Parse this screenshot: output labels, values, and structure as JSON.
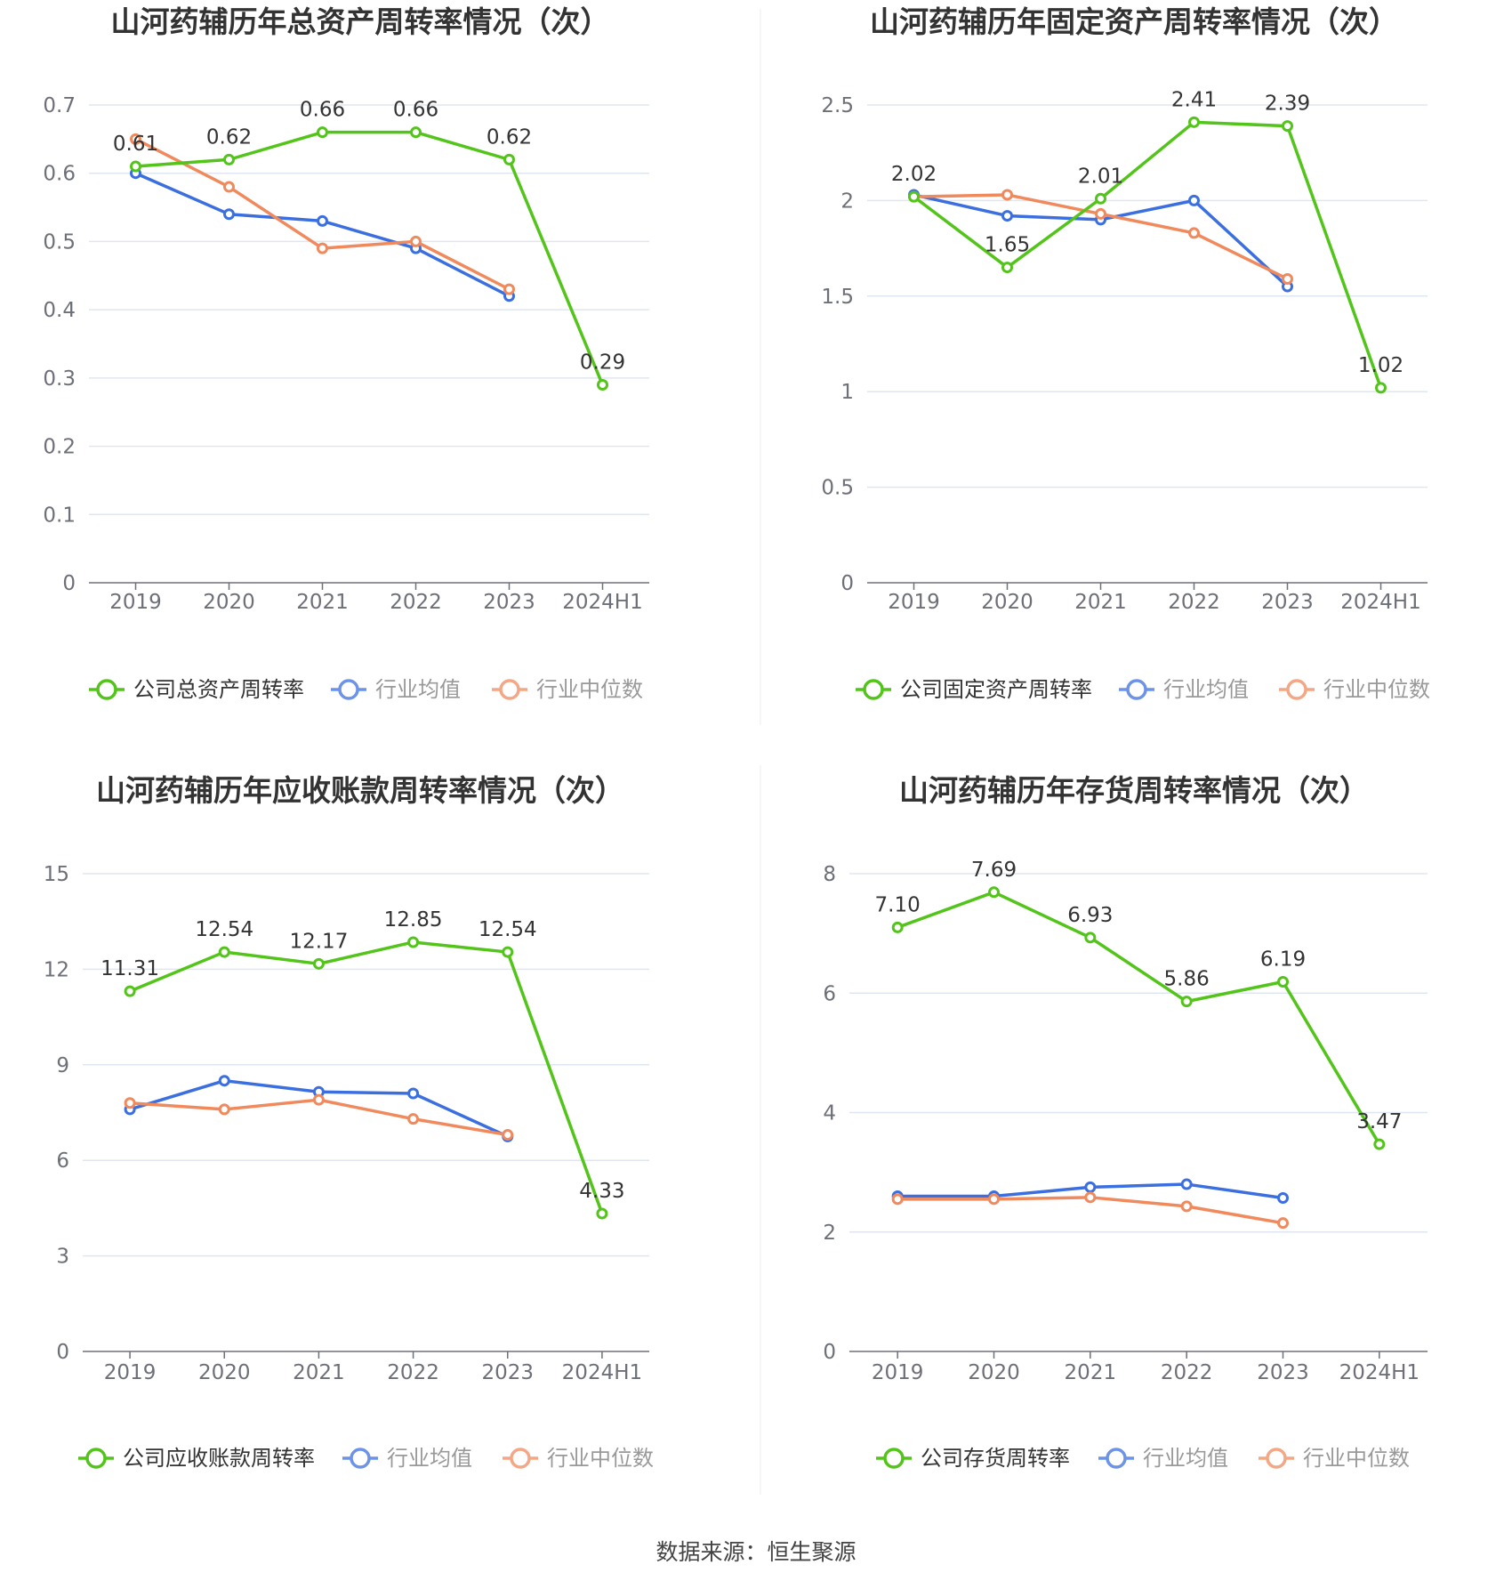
{
  "source_text": "数据来源：恒生聚源",
  "colors": {
    "company": "#52c41a",
    "avg": "#3b6fe0",
    "median": "#f08a5d",
    "grid": "#e0e6f1",
    "axis": "#6e7079",
    "text": "#333333"
  },
  "chart_data": [
    {
      "type": "line",
      "title": "山河药辅历年总资产周转率情况（次）",
      "categories": [
        "2019",
        "2020",
        "2021",
        "2022",
        "2023",
        "2024H1"
      ],
      "ylim": [
        0,
        0.7
      ],
      "yticks": [
        "0",
        "0.1",
        "0.2",
        "0.3",
        "0.4",
        "0.5",
        "0.6",
        "0.7"
      ],
      "series": [
        {
          "name": "公司总资产周转率",
          "role": "company",
          "values": [
            0.61,
            0.62,
            0.66,
            0.66,
            0.62,
            0.29
          ],
          "labels": [
            "0.61",
            "0.62",
            "0.66",
            "0.66",
            "0.62",
            "0.29"
          ]
        },
        {
          "name": "行业均值",
          "role": "avg",
          "values": [
            0.6,
            0.54,
            0.53,
            0.49,
            0.42,
            null
          ]
        },
        {
          "name": "行业中位数",
          "role": "median",
          "values": [
            0.65,
            0.58,
            0.49,
            0.5,
            0.43,
            null
          ]
        }
      ]
    },
    {
      "type": "line",
      "title": "山河药辅历年固定资产周转率情况（次）",
      "categories": [
        "2019",
        "2020",
        "2021",
        "2022",
        "2023",
        "2024H1"
      ],
      "ylim": [
        0,
        2.5
      ],
      "yticks": [
        "0",
        "0.5",
        "1",
        "1.5",
        "2",
        "2.5"
      ],
      "series": [
        {
          "name": "公司固定资产周转率",
          "role": "company",
          "values": [
            2.02,
            1.65,
            2.01,
            2.41,
            2.39,
            1.02
          ],
          "labels": [
            "2.02",
            "1.65",
            "2.01",
            "2.41",
            "2.39",
            "1.02"
          ]
        },
        {
          "name": "行业均值",
          "role": "avg",
          "values": [
            2.03,
            1.92,
            1.9,
            2.0,
            1.55,
            null
          ]
        },
        {
          "name": "行业中位数",
          "role": "median",
          "values": [
            2.02,
            2.03,
            1.93,
            1.83,
            1.59,
            null
          ]
        }
      ]
    },
    {
      "type": "line",
      "title": "山河药辅历年应收账款周转率情况（次）",
      "categories": [
        "2019",
        "2020",
        "2021",
        "2022",
        "2023",
        "2024H1"
      ],
      "ylim": [
        0,
        15
      ],
      "yticks": [
        "0",
        "3",
        "6",
        "9",
        "12",
        "15"
      ],
      "series": [
        {
          "name": "公司应收账款周转率",
          "role": "company",
          "values": [
            11.31,
            12.54,
            12.17,
            12.85,
            12.54,
            4.33
          ],
          "labels": [
            "11.31",
            "12.54",
            "12.17",
            "12.85",
            "12.54",
            "4.33"
          ]
        },
        {
          "name": "行业均值",
          "role": "avg",
          "values": [
            7.6,
            8.5,
            8.15,
            8.1,
            6.75,
            null
          ]
        },
        {
          "name": "行业中位数",
          "role": "median",
          "values": [
            7.8,
            7.6,
            7.9,
            7.3,
            6.8,
            null
          ]
        }
      ]
    },
    {
      "type": "line",
      "title": "山河药辅历年存货周转率情况（次）",
      "categories": [
        "2019",
        "2020",
        "2021",
        "2022",
        "2023",
        "2024H1"
      ],
      "ylim": [
        0,
        8
      ],
      "yticks": [
        "0",
        "2",
        "4",
        "6",
        "8"
      ],
      "series": [
        {
          "name": "公司存货周转率",
          "role": "company",
          "values": [
            7.1,
            7.69,
            6.93,
            5.86,
            6.19,
            3.47
          ],
          "labels": [
            "7.10",
            "7.69",
            "6.93",
            "5.86",
            "6.19",
            "3.47"
          ]
        },
        {
          "name": "行业均值",
          "role": "avg",
          "values": [
            2.6,
            2.6,
            2.75,
            2.8,
            2.57,
            null
          ]
        },
        {
          "name": "行业中位数",
          "role": "median",
          "values": [
            2.55,
            2.55,
            2.58,
            2.43,
            2.15,
            null
          ]
        }
      ]
    }
  ]
}
